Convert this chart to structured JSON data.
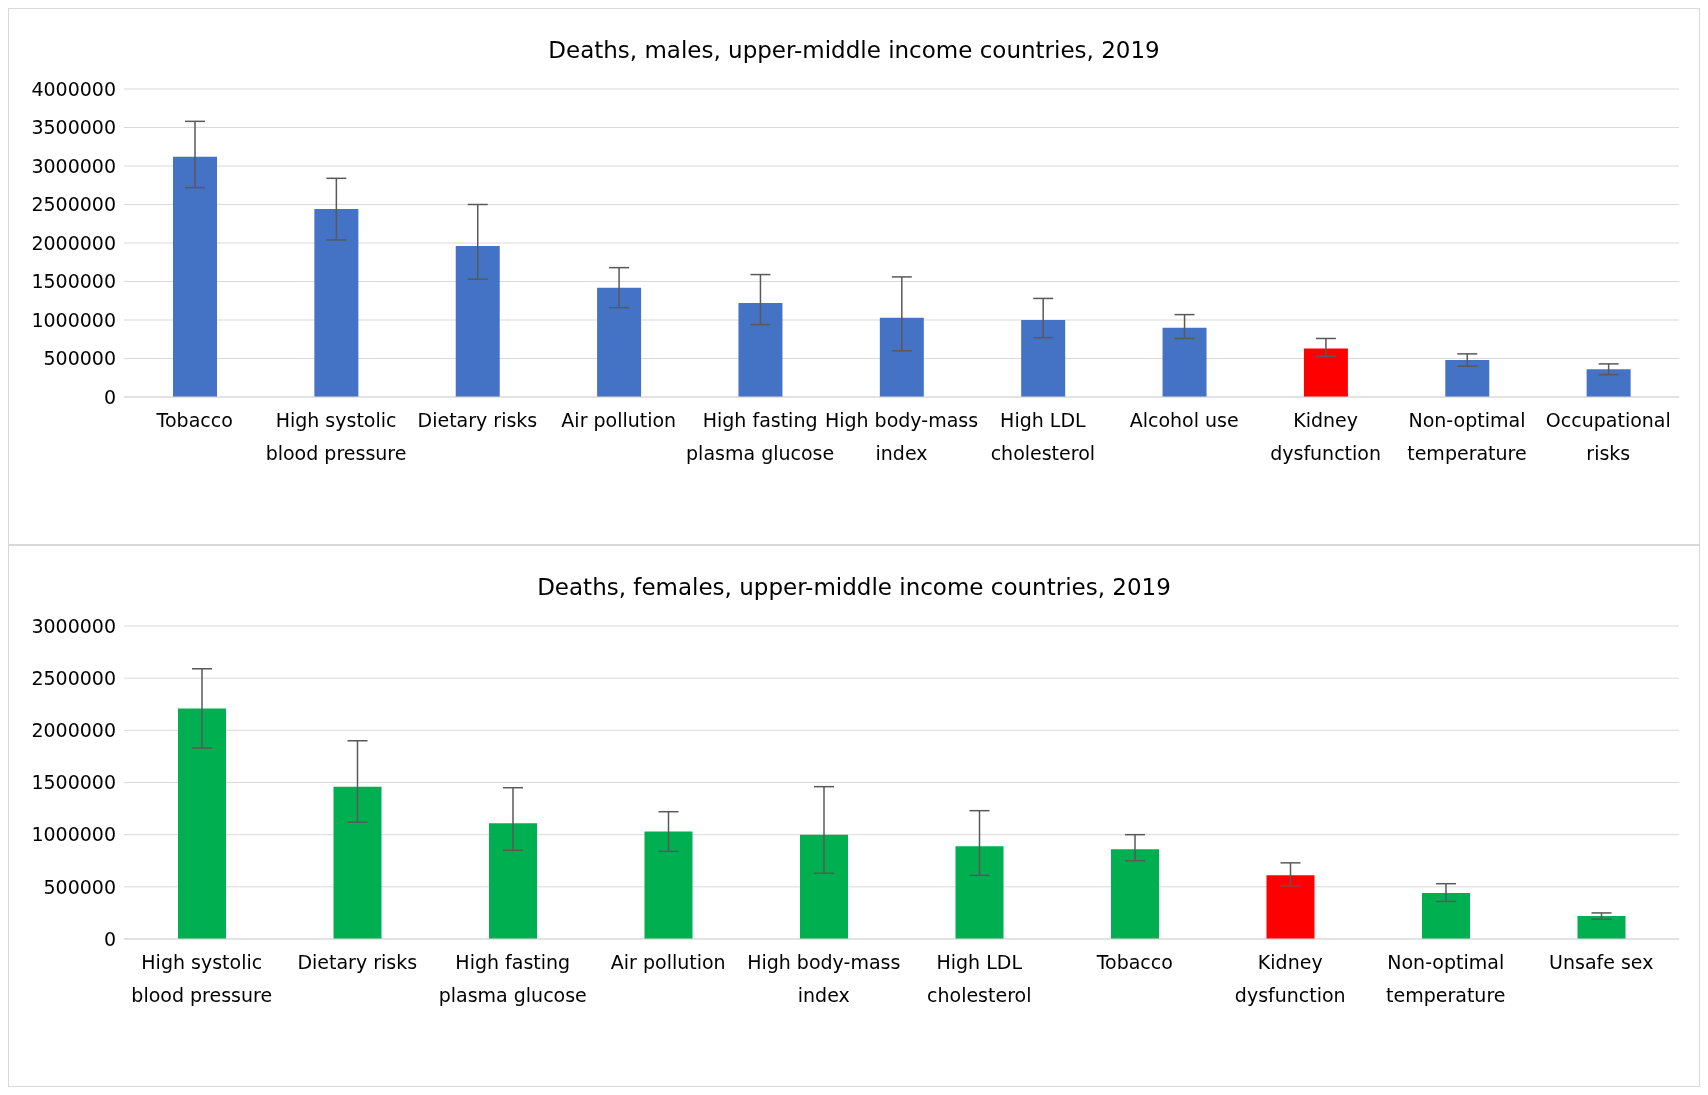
{
  "chart_data": [
    {
      "type": "bar",
      "title": "Deaths, males, upper-middle income countries, 2019",
      "categories": [
        "Tobacco",
        "High systolic blood pressure",
        "Dietary risks",
        "Air pollution",
        "High fasting plasma glucose",
        "High body-mass index",
        "High LDL cholesterol",
        "Alcohol use",
        "Kidney dysfunction",
        "Non-optimal temperature",
        "Occupational risks"
      ],
      "values": [
        3120000,
        2440000,
        1960000,
        1420000,
        1220000,
        1030000,
        1000000,
        900000,
        630000,
        480000,
        360000
      ],
      "errors": [
        [
          2720000,
          3580000
        ],
        [
          2040000,
          2840000
        ],
        [
          1530000,
          2500000
        ],
        [
          1160000,
          1680000
        ],
        [
          940000,
          1590000
        ],
        [
          600000,
          1560000
        ],
        [
          770000,
          1280000
        ],
        [
          760000,
          1070000
        ],
        [
          530000,
          760000
        ],
        [
          400000,
          560000
        ],
        [
          290000,
          430000
        ]
      ],
      "colors": [
        "#4472c4",
        "#4472c4",
        "#4472c4",
        "#4472c4",
        "#4472c4",
        "#4472c4",
        "#4472c4",
        "#4472c4",
        "#ff0000",
        "#4472c4",
        "#4472c4"
      ],
      "ylim": [
        0,
        4000000
      ],
      "yticks": [
        0,
        500000,
        1000000,
        1500000,
        2000000,
        2500000,
        3000000,
        3500000,
        4000000
      ],
      "grid": "y"
    },
    {
      "type": "bar",
      "title": "Deaths, females, upper-middle income countries, 2019",
      "categories": [
        "High systolic blood pressure",
        "Dietary risks",
        "High fasting plasma glucose",
        "Air pollution",
        "High body-mass index",
        "High LDL cholesterol",
        "Tobacco",
        "Kidney dysfunction",
        "Non-optimal temperature",
        "Unsafe sex"
      ],
      "values": [
        2210000,
        1460000,
        1110000,
        1030000,
        1000000,
        890000,
        860000,
        610000,
        440000,
        220000
      ],
      "errors": [
        [
          1830000,
          2590000
        ],
        [
          1120000,
          1900000
        ],
        [
          850000,
          1450000
        ],
        [
          840000,
          1220000
        ],
        [
          630000,
          1460000
        ],
        [
          610000,
          1230000
        ],
        [
          750000,
          1000000
        ],
        [
          510000,
          730000
        ],
        [
          360000,
          530000
        ],
        [
          190000,
          250000
        ]
      ],
      "colors": [
        "#00b050",
        "#00b050",
        "#00b050",
        "#00b050",
        "#00b050",
        "#00b050",
        "#00b050",
        "#ff0000",
        "#00b050",
        "#00b050"
      ],
      "ylim": [
        0,
        3000000
      ],
      "yticks": [
        0,
        500000,
        1000000,
        1500000,
        2000000,
        2500000,
        3000000
      ],
      "grid": "y"
    }
  ]
}
